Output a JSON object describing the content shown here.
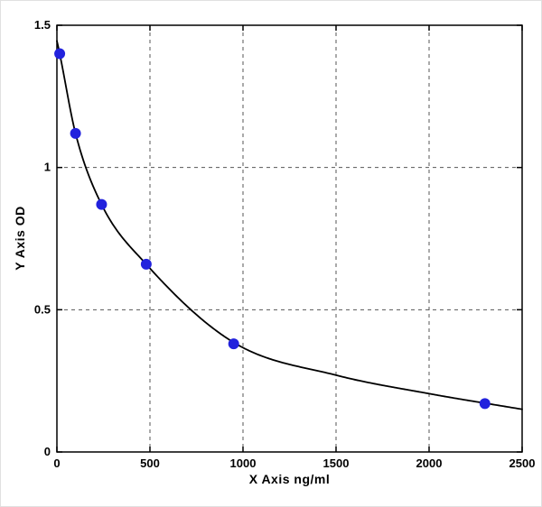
{
  "chart_data": {
    "type": "scatter",
    "title": "",
    "xlabel": "X Axis ng/ml",
    "ylabel": "Y Axis OD",
    "xlim": [
      0,
      2500
    ],
    "ylim": [
      0,
      1.5
    ],
    "x_ticks": [
      0,
      500,
      1000,
      1500,
      2000,
      2500
    ],
    "x_tick_labels": [
      "0",
      "500",
      "1000",
      "1500",
      "2000",
      "2500"
    ],
    "y_ticks": [
      0,
      0.5,
      1,
      1.5
    ],
    "y_tick_labels": [
      "0",
      "0.5",
      "1",
      "1.5"
    ],
    "grid": "dashed",
    "legend": null,
    "points": {
      "x": [
        15,
        100,
        240,
        480,
        950,
        2300
      ],
      "y": [
        1.4,
        1.12,
        0.87,
        0.66,
        0.38,
        0.17
      ]
    },
    "curve": {
      "x": [
        0,
        15,
        100,
        240,
        480,
        950,
        1500,
        2000,
        2500
      ],
      "y": [
        1.445,
        1.4,
        1.12,
        0.87,
        0.66,
        0.385,
        0.27,
        0.205,
        0.15
      ]
    },
    "colors": {
      "point": "#2222dd",
      "curve": "#000000",
      "axis": "#000000",
      "grid": "#555555",
      "plot_bg": "#ffffff"
    }
  }
}
